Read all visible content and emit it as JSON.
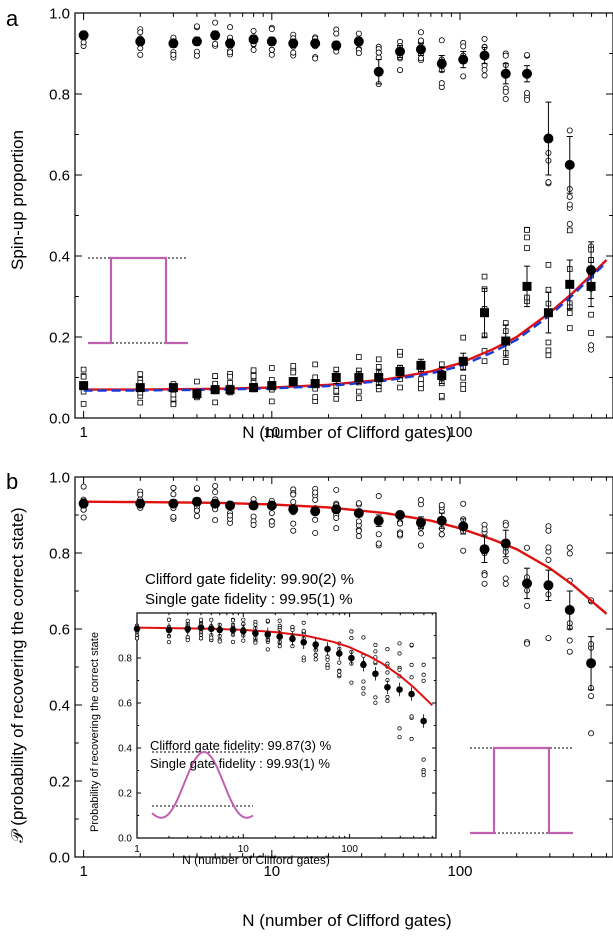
{
  "chart_data": [
    {
      "panel_label": "a",
      "type": "scatter",
      "xscale": "log",
      "xlim": [
        0.9,
        650
      ],
      "ylim": [
        0.0,
        1.0
      ],
      "xlabel": "N (number of Clifford gates)",
      "ylabel": "Spin-up proportion",
      "xticks": [
        1,
        10,
        100
      ],
      "xtick_labels": [
        "1",
        "10",
        "100"
      ],
      "yticks": [
        0.0,
        0.2,
        0.4,
        0.6,
        0.8,
        1.0
      ],
      "ytick_labels": [
        "0.0",
        "0.2",
        "0.4",
        "0.6",
        "0.8",
        "1.0"
      ],
      "series": [
        {
          "marker": "filled-circle",
          "x": [
            1,
            2,
            3,
            4,
            5,
            6,
            8,
            10,
            13,
            17,
            22,
            29,
            37,
            48,
            62,
            80,
            104,
            135,
            175,
            227,
            295,
            383,
            497
          ],
          "y": [
            0.945,
            0.93,
            0.925,
            0.93,
            0.945,
            0.925,
            0.935,
            0.93,
            0.925,
            0.925,
            0.92,
            0.93,
            0.855,
            0.905,
            0.91,
            0.875,
            0.885,
            0.895,
            0.85,
            0.85,
            0.69,
            0.625,
            0.365
          ],
          "err": [
            0.01,
            0.01,
            0.01,
            0.01,
            0.01,
            0.01,
            0.01,
            0.01,
            0.01,
            0.01,
            0.01,
            0.01,
            0.03,
            0.015,
            0.015,
            0.02,
            0.02,
            0.02,
            0.025,
            0.02,
            0.09,
            0.07,
            0.07
          ]
        },
        {
          "marker": "filled-square",
          "x": [
            1,
            2,
            3,
            4,
            5,
            6,
            8,
            10,
            13,
            17,
            22,
            29,
            37,
            48,
            62,
            80,
            104,
            135,
            175,
            227,
            295,
            383,
            497
          ],
          "y": [
            0.08,
            0.075,
            0.075,
            0.06,
            0.07,
            0.07,
            0.075,
            0.08,
            0.09,
            0.085,
            0.1,
            0.1,
            0.1,
            0.115,
            0.13,
            0.105,
            0.14,
            0.26,
            0.19,
            0.325,
            0.26,
            0.33,
            0.325
          ],
          "err": [
            0.005,
            0.005,
            0.005,
            0.01,
            0.01,
            0.01,
            0.01,
            0.01,
            0.01,
            0.01,
            0.015,
            0.015,
            0.02,
            0.015,
            0.015,
            0.02,
            0.02,
            0.06,
            0.04,
            0.05,
            0.05,
            0.06,
            0.05
          ]
        }
      ],
      "fits": [
        {
          "color": "#e01010",
          "style": "solid",
          "x": [
            1,
            2,
            5,
            10,
            20,
            40,
            70,
            100,
            150,
            200,
            300,
            400,
            600
          ],
          "y": [
            0.07,
            0.07,
            0.072,
            0.075,
            0.082,
            0.095,
            0.115,
            0.135,
            0.17,
            0.2,
            0.26,
            0.31,
            0.39
          ]
        },
        {
          "color": "#1a3bd6",
          "style": "dashed",
          "x": [
            1,
            2,
            5,
            10,
            20,
            40,
            70,
            100,
            150,
            200,
            300,
            400,
            600
          ],
          "y": [
            0.068,
            0.068,
            0.07,
            0.073,
            0.079,
            0.092,
            0.11,
            0.128,
            0.163,
            0.193,
            0.253,
            0.305,
            0.385
          ]
        }
      ],
      "pulse_inset": {
        "color": "#c060b0",
        "shape": "square-pulse"
      }
    },
    {
      "panel_label": "b",
      "type": "scatter",
      "xscale": "log",
      "xlim": [
        0.9,
        650
      ],
      "ylim": [
        0.0,
        1.0
      ],
      "xlabel": "N (number of Clifford gates)",
      "ylabel": "𝒫 (probability of recovering the correct state)",
      "xticks": [
        1,
        10,
        100
      ],
      "xtick_labels": [
        "1",
        "10",
        "100"
      ],
      "yticks": [
        0.0,
        0.2,
        0.4,
        0.6,
        0.8,
        1.0
      ],
      "ytick_labels": [
        "0.0",
        "0.2",
        "0.4",
        "0.6",
        "0.8",
        "1.0"
      ],
      "annotations": [
        "Clifford gate fidelity: 99.90(2) %",
        "Single gate fidelity : 99.95(1) %"
      ],
      "series": [
        {
          "marker": "filled-circle",
          "x": [
            1,
            2,
            3,
            4,
            5,
            6,
            8,
            10,
            13,
            17,
            22,
            29,
            37,
            48,
            62,
            80,
            104,
            135,
            175,
            227,
            295,
            383,
            497
          ],
          "y": [
            0.93,
            0.93,
            0.93,
            0.935,
            0.93,
            0.925,
            0.925,
            0.925,
            0.915,
            0.91,
            0.915,
            0.905,
            0.885,
            0.9,
            0.88,
            0.885,
            0.87,
            0.81,
            0.825,
            0.72,
            0.715,
            0.65,
            0.51
          ],
          "err": [
            0.01,
            0.01,
            0.01,
            0.01,
            0.01,
            0.01,
            0.01,
            0.01,
            0.01,
            0.01,
            0.01,
            0.01,
            0.015,
            0.01,
            0.015,
            0.02,
            0.02,
            0.035,
            0.035,
            0.04,
            0.04,
            0.05,
            0.07
          ]
        }
      ],
      "fits": [
        {
          "color": "#e01010",
          "style": "solid",
          "x": [
            1,
            2,
            5,
            10,
            20,
            40,
            70,
            100,
            150,
            200,
            300,
            400,
            600
          ],
          "y": [
            0.935,
            0.934,
            0.932,
            0.928,
            0.92,
            0.905,
            0.885,
            0.865,
            0.835,
            0.81,
            0.76,
            0.715,
            0.64
          ]
        }
      ],
      "pulse_inset": {
        "color": "#c060b0",
        "shape": "square-pulse"
      },
      "inset": {
        "type": "scatter",
        "xscale": "log",
        "xlim": [
          1,
          650
        ],
        "ylim": [
          0.0,
          1.0
        ],
        "xlabel": "N (number of Clifford gates)",
        "ylabel": "Probability of recovering the correct state",
        "xtick_labels": [
          "1",
          "10",
          "100"
        ],
        "ytick_labels": [
          "0.0",
          "0.2",
          "0.4",
          "0.6",
          "0.8"
        ],
        "annotations": [
          "Clifford gate fidelity: 99.87(3) %",
          "Single gate fidelity : 99.93(1) %"
        ],
        "x": [
          1,
          2,
          3,
          4,
          5,
          6,
          8,
          10,
          13,
          17,
          22,
          29,
          37,
          48,
          62,
          80,
          104,
          135,
          175,
          227,
          295,
          383,
          497
        ],
        "y": [
          0.93,
          0.925,
          0.93,
          0.935,
          0.93,
          0.925,
          0.925,
          0.92,
          0.91,
          0.905,
          0.895,
          0.885,
          0.87,
          0.86,
          0.84,
          0.82,
          0.8,
          0.77,
          0.73,
          0.67,
          0.66,
          0.64,
          0.52
        ],
        "fit_x": [
          1,
          2,
          5,
          10,
          20,
          40,
          70,
          100,
          150,
          200,
          300,
          400,
          600
        ],
        "fit_y": [
          0.935,
          0.933,
          0.93,
          0.925,
          0.915,
          0.898,
          0.872,
          0.848,
          0.81,
          0.778,
          0.72,
          0.67,
          0.59
        ],
        "pulse_shape": "sinc"
      }
    }
  ]
}
